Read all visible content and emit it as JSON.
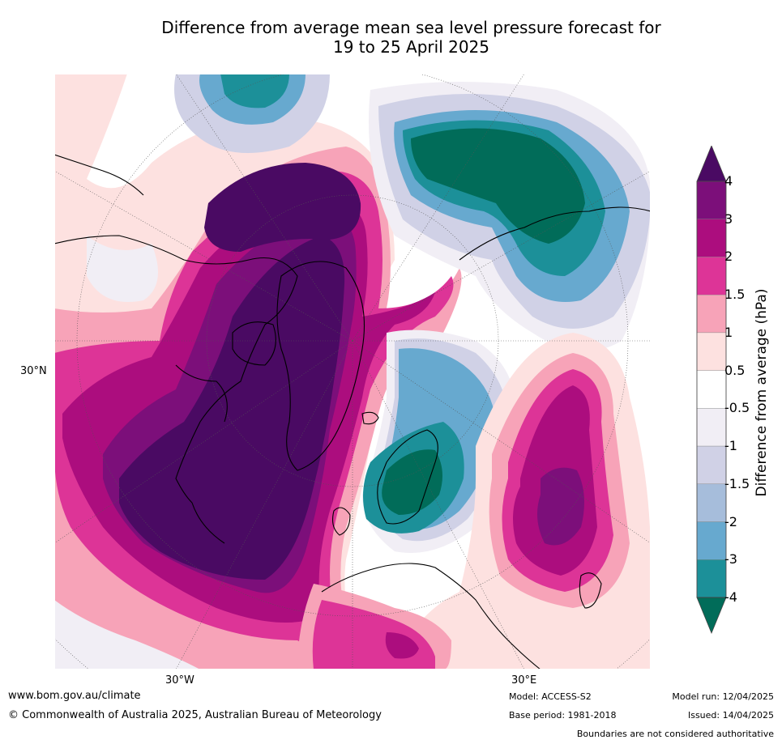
{
  "title": {
    "line1": "Difference from average mean sea level pressure forecast for",
    "line2": "19 to 25 April 2025"
  },
  "map": {
    "projection": "polar stereographic (Northern Hemisphere)",
    "lat_label": "30°N",
    "lon_labels": [
      "30°W",
      "30°E"
    ]
  },
  "colorbar": {
    "title": "Difference from average (hPa)",
    "tick_labels": [
      "4",
      "3",
      "2",
      "1.5",
      "1",
      "0.5",
      "-0.5",
      "-1",
      "-1.5",
      "-2",
      "-3",
      "-4"
    ],
    "bands": [
      {
        "range": ">4",
        "color": "#4a0a63"
      },
      {
        "range": "3 to 4",
        "color": "#7c0f7a"
      },
      {
        "range": "2 to 3",
        "color": "#ac0d7e"
      },
      {
        "range": "1.5 to 2",
        "color": "#dd3497"
      },
      {
        "range": "1 to 1.5",
        "color": "#f7a3b8"
      },
      {
        "range": "0.5 to 1",
        "color": "#fde1e0"
      },
      {
        "range": "-0.5 to 0.5",
        "color": "#ffffff"
      },
      {
        "range": "-1 to -0.5",
        "color": "#f1eef5"
      },
      {
        "range": "-1.5 to -1",
        "color": "#d0d1e6"
      },
      {
        "range": "-2 to -1.5",
        "color": "#a6bddb"
      },
      {
        "range": "-3 to -2",
        "color": "#67a9cf"
      },
      {
        "range": "-4 to -3",
        "color": "#1c9099"
      },
      {
        "range": "<-4",
        "color": "#016c59"
      }
    ]
  },
  "footer": {
    "website": "www.bom.gov.au/climate",
    "copyright": "© Commonwealth of Australia 2025, Australian Bureau of Meteorology",
    "model": "Model: ACCESS-S2",
    "base_period": "Base period: 1981-2018",
    "model_run": "Model run: 12/04/2025",
    "issued": "Issued: 14/04/2025",
    "disclaimer": "Boundaries are not considered authoritative"
  }
}
